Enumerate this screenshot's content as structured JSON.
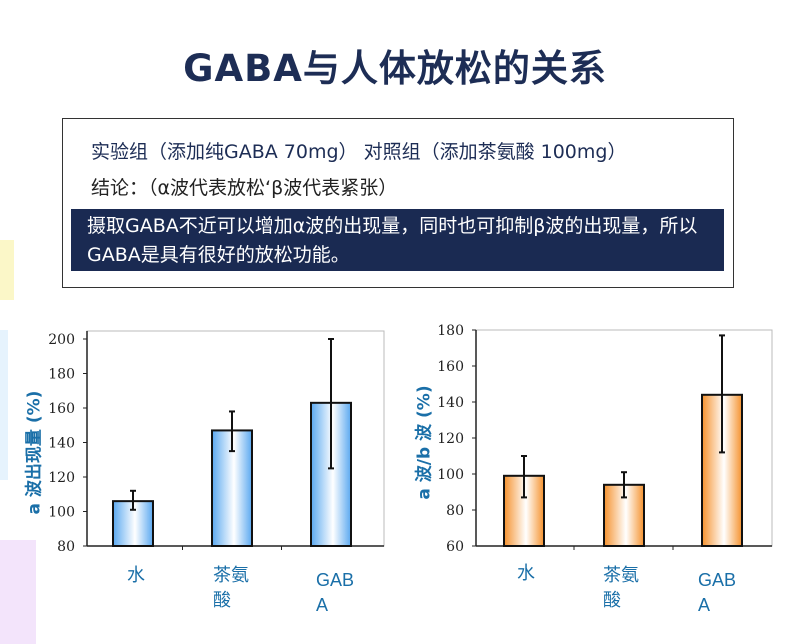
{
  "title": "GABA与人体放松的关系",
  "info": {
    "line1": "实验组（添加纯GABA 70mg） 对照组（添加茶氨酸 100mg）",
    "line2": "结论：（α波代表放松‘β波代表紧张）",
    "conclusion": "摄取GABA不近可以增加α波的出现量，同时也可抑制β波的出现量，所以GABA是具有很好的放松功能。"
  },
  "chart_data": [
    {
      "type": "bar",
      "categories": [
        "水",
        "茶氨酸",
        "GABA"
      ],
      "values": [
        106,
        147,
        163
      ],
      "error_low": [
        101,
        135,
        125
      ],
      "error_high": [
        112,
        158,
        200
      ],
      "ylabel": "a 波出现量 (%)",
      "ylim": [
        80,
        200
      ],
      "yticks": [
        "80",
        "100",
        "120",
        "140",
        "160",
        "180",
        "200"
      ],
      "bar_color": "#5aa8f0",
      "grid": false
    },
    {
      "type": "bar",
      "categories": [
        "水",
        "茶氨酸",
        "GABA"
      ],
      "values": [
        99,
        94,
        144
      ],
      "error_low": [
        87,
        87,
        112
      ],
      "error_high": [
        110,
        101,
        177
      ],
      "ylabel": "a 波/b 波 (%)",
      "ylim": [
        60,
        180
      ],
      "yticks": [
        "60",
        "80",
        "100",
        "120",
        "140",
        "160",
        "180"
      ],
      "bar_color": "#f5922e",
      "grid": false
    }
  ]
}
